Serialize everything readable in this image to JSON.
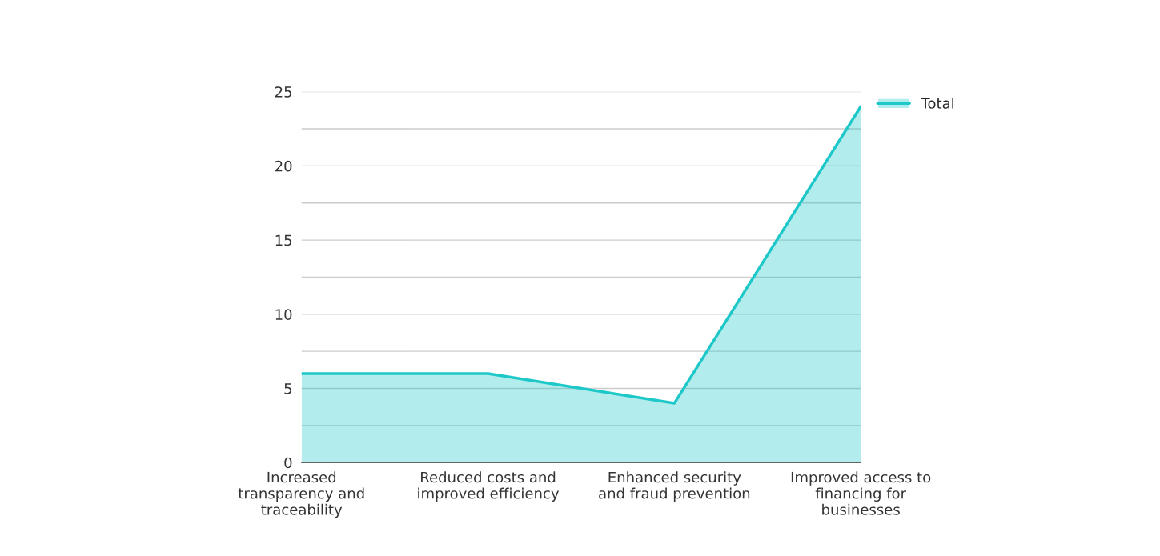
{
  "chart_data": {
    "type": "area",
    "categories": [
      "Increased transparency and traceability",
      "Reduced costs and improved efficiency",
      "Enhanced security and fraud prevention",
      "Improved access to financing for businesses"
    ],
    "series": [
      {
        "name": "Total",
        "color": "#1ec8c8",
        "values": [
          6,
          6,
          4,
          24
        ]
      }
    ],
    "ylim": [
      0,
      25
    ],
    "yticks": [
      0,
      {
        "value": 2.5,
        "label": null
      },
      5,
      {
        "value": 7.5,
        "label": null
      },
      10,
      {
        "value": 12.5,
        "label": null
      },
      15,
      {
        "value": 17.5,
        "label": null
      },
      20,
      {
        "value": 22.5,
        "label": null
      },
      25
    ],
    "grid": "y",
    "legend": "top right"
  }
}
